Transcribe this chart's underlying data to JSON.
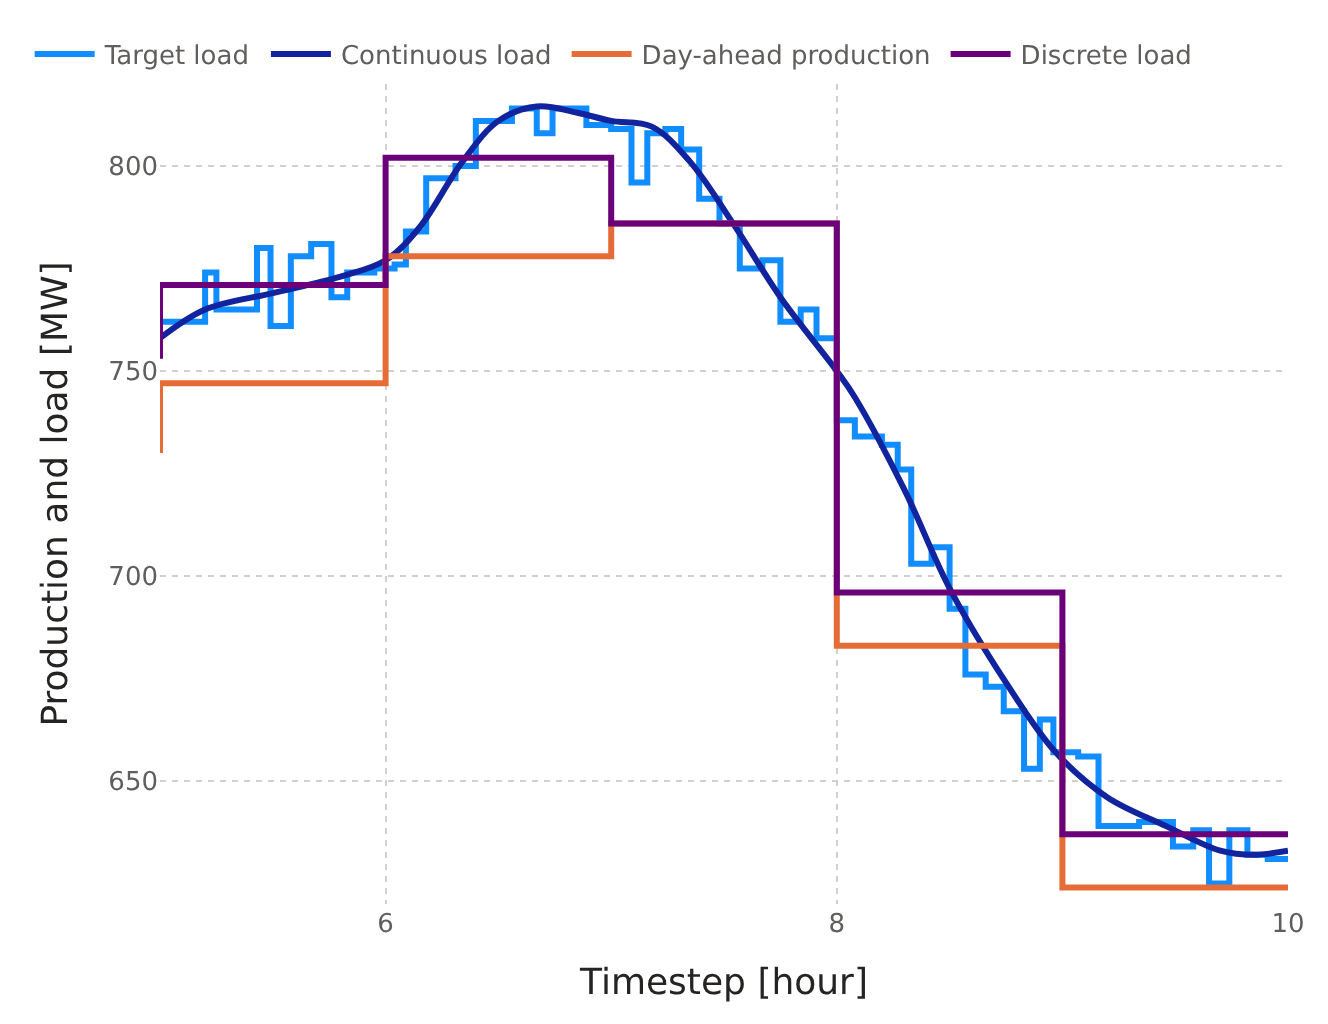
{
  "chart_data": {
    "type": "step",
    "xlabel": "Timestep [hour]",
    "ylabel": "Production and load [MW]",
    "xlim": [
      5,
      10
    ],
    "xticks": [
      6,
      8,
      10
    ],
    "ylim": [
      620,
      820
    ],
    "yticks": [
      650,
      700,
      750,
      800
    ],
    "grid": true,
    "legend": "top left",
    "series": [
      {
        "name": "Target load",
        "color": "#118dff",
        "x": [
          5.0,
          5.2,
          5.25,
          5.43,
          5.49,
          5.58,
          5.67,
          5.76,
          5.83,
          5.95,
          6.04,
          6.09,
          6.18,
          6.31,
          6.4,
          6.56,
          6.67,
          6.74,
          6.89,
          7.0,
          7.09,
          7.16,
          7.24,
          7.31,
          7.39,
          7.48,
          7.57,
          7.67,
          7.75,
          7.84,
          7.91,
          8.0,
          8.08,
          8.2,
          8.27,
          8.33,
          8.42,
          8.5,
          8.57,
          8.66,
          8.74,
          8.83,
          8.9,
          8.96,
          9.07,
          9.16,
          9.34,
          9.49,
          9.58,
          9.65,
          9.74,
          9.82,
          9.91,
          10.0
        ],
        "values": [
          762,
          774,
          765,
          780,
          761,
          778,
          781,
          768,
          774,
          775,
          776,
          784,
          797,
          800,
          811,
          814,
          808,
          814,
          810,
          809,
          796,
          808,
          809,
          804,
          792,
          786,
          775,
          777,
          762,
          765,
          758,
          738,
          734,
          732,
          726,
          703,
          707,
          692,
          676,
          673,
          667,
          653,
          665,
          657,
          656,
          639,
          640,
          634,
          638,
          625,
          638,
          632,
          631,
          631
        ]
      },
      {
        "name": "Continuous load",
        "type": "line",
        "color": "#12239e",
        "x": [
          5.0,
          5.2,
          5.5,
          5.8,
          6.0,
          6.15,
          6.34,
          6.5,
          6.67,
          6.85,
          7.0,
          7.18,
          7.35,
          7.54,
          7.75,
          8.0,
          8.08,
          8.3,
          8.5,
          8.75,
          8.97,
          9.2,
          9.46,
          9.7,
          9.85,
          10.0
        ],
        "values": [
          758,
          765,
          769,
          773,
          777,
          785,
          801,
          811,
          814.5,
          813,
          811,
          809.6,
          801,
          786,
          768,
          750,
          743.6,
          721,
          697,
          674,
          657,
          646,
          639,
          633,
          632,
          633
        ]
      },
      {
        "name": "Day-ahead production",
        "color": "#e66c37",
        "x": [
          5,
          5,
          6,
          7,
          8,
          9,
          10
        ],
        "values": [
          730,
          747,
          778,
          786,
          683,
          624,
          624
        ]
      },
      {
        "name": "Discrete load",
        "color": "#6b007b",
        "x": [
          5,
          5,
          6,
          7,
          8,
          9,
          10
        ],
        "values": [
          753,
          771,
          802,
          786,
          696,
          637,
          637
        ]
      }
    ]
  }
}
